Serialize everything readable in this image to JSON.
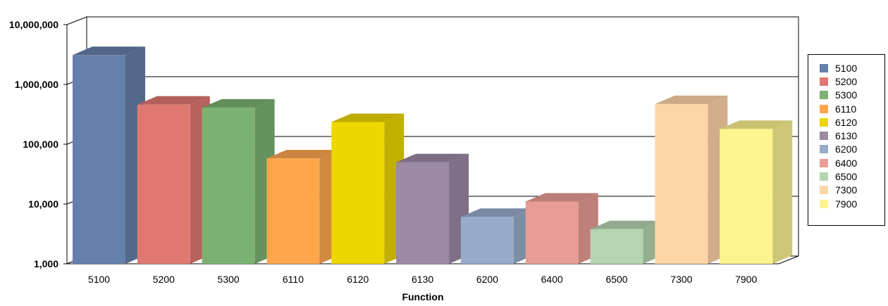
{
  "chart_data": {
    "type": "bar",
    "style": "3d-column",
    "y_scale": "log",
    "ylim": [
      1000,
      10000000
    ],
    "yticks": [
      "1,000",
      "10,000",
      "100,000",
      "1,000,000",
      "10,000,000"
    ],
    "xlabel": "Function",
    "categories": [
      "5100",
      "5200",
      "5300",
      "6110",
      "6120",
      "6130",
      "6200",
      "6400",
      "6500",
      "7300",
      "7900"
    ],
    "values": [
      3100000,
      460000,
      410000,
      58000,
      235000,
      50000,
      6100,
      11000,
      3800,
      470000,
      180000
    ],
    "colors": [
      "#6580aa",
      "#e07872",
      "#7bb271",
      "#ffa64d",
      "#eed600",
      "#9b89a5",
      "#97acca",
      "#e89d94",
      "#b5d5b0",
      "#ffd4a7",
      "#fdf38f"
    ],
    "legend": {
      "position": "right"
    }
  }
}
